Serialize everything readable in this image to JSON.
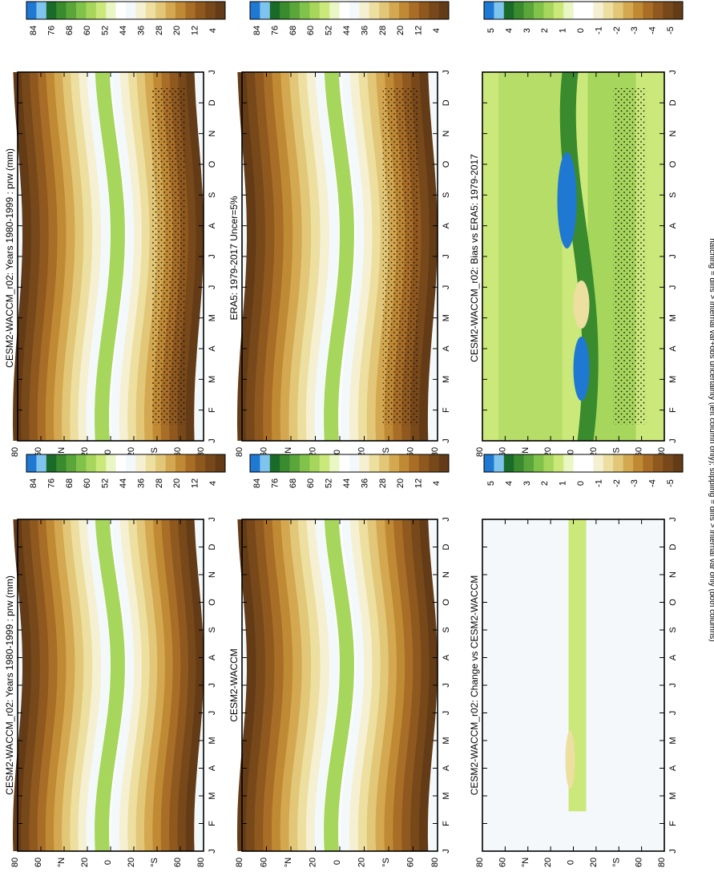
{
  "footnote": "hatching = diffs > internal var+obs uncertainty (left column only); stippling = diffs > internal var only (both columns)",
  "colors": {
    "precip": [
      "#1f78d1",
      "#7fc4ef",
      "#1a6b2a",
      "#3a8a2e",
      "#5aa63a",
      "#80c24a",
      "#a6d65c",
      "#cbe87a",
      "#eaf6c4",
      "#ffffff",
      "#f3f8fb",
      "#f6f0d2",
      "#eddfa0",
      "#e1c777",
      "#d3a850",
      "#c08a34",
      "#a86d26",
      "#8f581e",
      "#774819",
      "#633b16"
    ],
    "diff": [
      "#1f78d1",
      "#7fc4ef",
      "#1a6b2a",
      "#3a8a2e",
      "#5aa63a",
      "#80c24a",
      "#a6d65c",
      "#cbe87a",
      "#eaf6c4",
      "#ffffff",
      "#ffffff",
      "#f6f0d2",
      "#eddfa0",
      "#e1c777",
      "#d3a850",
      "#c08a34",
      "#a86d26",
      "#8f581e",
      "#774819",
      "#633b16"
    ]
  },
  "chart_data": [
    {
      "type": "heatmap",
      "title": "CESM2-WACCM_r02: Years 1980-1999 : prw (mm)",
      "x_ticks": [
        "J",
        "F",
        "M",
        "A",
        "M",
        "J",
        "J",
        "A",
        "S",
        "O",
        "N",
        "D",
        "J"
      ],
      "y_ticks": [
        "80",
        "60",
        "°N",
        "20",
        "0",
        "20",
        "°S",
        "60",
        "80"
      ],
      "colorbar_labels": [
        "84",
        "76",
        "68",
        "60",
        "52",
        "44",
        "36",
        "28",
        "20",
        "12",
        "4"
      ],
      "stipple": true
    },
    {
      "type": "heatmap",
      "title": "CESM2-WACCM_r02: Years 1980-1999 : prw (mm)",
      "x_ticks": [
        "J",
        "F",
        "M",
        "A",
        "M",
        "J",
        "J",
        "A",
        "S",
        "O",
        "N",
        "D",
        "J"
      ],
      "y_ticks": [
        "80",
        "60",
        "°N",
        "20",
        "0",
        "20",
        "°S",
        "60",
        "80"
      ],
      "colorbar_labels": [
        "84",
        "76",
        "68",
        "60",
        "52",
        "44",
        "36",
        "28",
        "20",
        "12",
        "4"
      ],
      "stipple": false
    },
    {
      "type": "heatmap",
      "title": "ERA5: 1979-2017 Uncer=5%",
      "x_ticks": [
        "J",
        "F",
        "M",
        "A",
        "M",
        "J",
        "J",
        "A",
        "S",
        "O",
        "N",
        "D",
        "J"
      ],
      "y_ticks": [
        "80",
        "60",
        "°N",
        "20",
        "0",
        "20",
        "°S",
        "60",
        "80"
      ],
      "colorbar_labels": [
        "84",
        "76",
        "68",
        "60",
        "52",
        "44",
        "36",
        "28",
        "20",
        "12",
        "4"
      ],
      "stipple": true
    },
    {
      "type": "heatmap",
      "title": "CESM2-WACCM",
      "x_ticks": [
        "J",
        "F",
        "M",
        "A",
        "M",
        "J",
        "J",
        "A",
        "S",
        "O",
        "N",
        "D",
        "J"
      ],
      "y_ticks": [
        "80",
        "60",
        "°N",
        "20",
        "0",
        "20",
        "°S",
        "60",
        "80"
      ],
      "colorbar_labels": [
        "84",
        "76",
        "68",
        "60",
        "52",
        "44",
        "36",
        "28",
        "20",
        "12",
        "4"
      ],
      "stipple": false
    },
    {
      "type": "heatmap",
      "title": "CESM2-WACCM_r02: Bias vs ERA5: 1979-2017",
      "x_ticks": [
        "J",
        "F",
        "M",
        "A",
        "M",
        "J",
        "J",
        "A",
        "S",
        "O",
        "N",
        "D",
        "J"
      ],
      "y_ticks": [
        "80",
        "60",
        "°N",
        "20",
        "0",
        "20",
        "°S",
        "60",
        "80"
      ],
      "colorbar_labels": [
        "5",
        "4",
        "3",
        "2",
        "1",
        "0",
        "-1",
        "-2",
        "-3",
        "-4",
        "-5"
      ],
      "stipple": true
    },
    {
      "type": "heatmap",
      "title": "CESM2-WACCM_r02: Change vs CESM2-WACCM",
      "x_ticks": [
        "J",
        "F",
        "M",
        "A",
        "M",
        "J",
        "J",
        "A",
        "S",
        "O",
        "N",
        "D",
        "J"
      ],
      "y_ticks": [
        "80",
        "60",
        "°N",
        "20",
        "0",
        "20",
        "°S",
        "60",
        "80"
      ],
      "colorbar_labels": [
        "5",
        "4",
        "3",
        "2",
        "1",
        "0",
        "-1",
        "-2",
        "-3",
        "-4",
        "-5"
      ],
      "stipple": false
    }
  ]
}
